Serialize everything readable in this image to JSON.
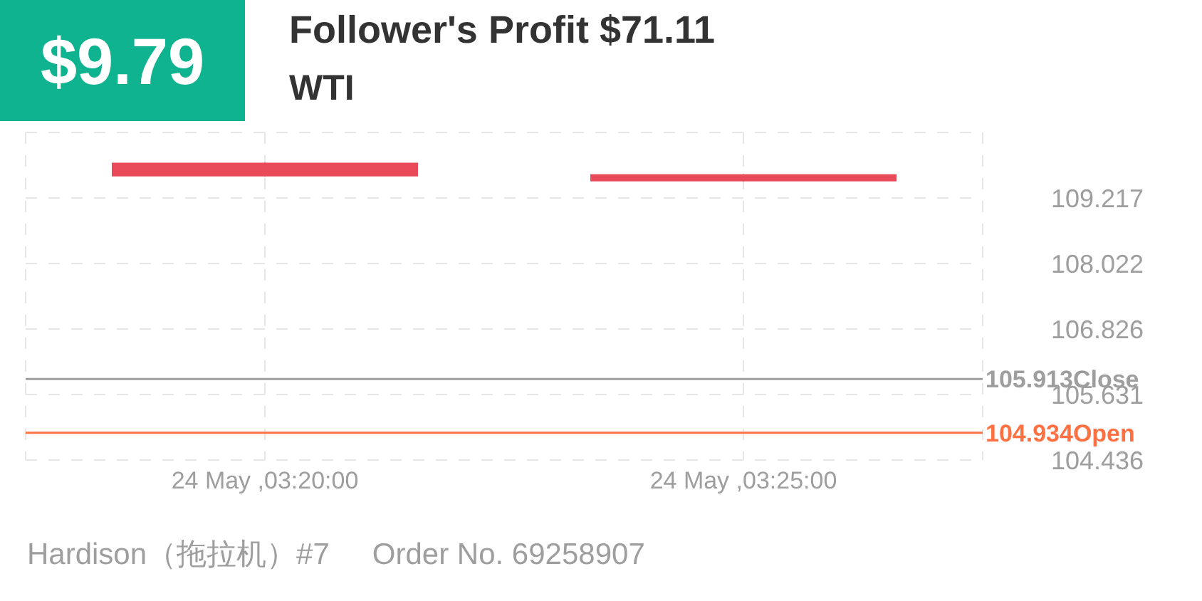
{
  "chart_data": {
    "type": "candlestick",
    "title": "Follower's Profit $71.11",
    "subtitle": "WTI",
    "annotations": [
      "$9.79",
      "Hardison（拖拉机）#7",
      "Order No. 69258907"
    ],
    "categories": [
      "24 May ,03:20:00",
      "24 May ,03:25:00"
    ],
    "ohlc": [
      [
        109.86,
        109.86,
        109.61,
        109.61
      ],
      [
        109.65,
        109.65,
        109.52,
        109.52
      ]
    ],
    "color": "#e84a5a",
    "ylim": [
      104.436,
      110.412
    ],
    "yticks": [
      104.436,
      105.631,
      106.826,
      108.022,
      109.217,
      {
        "value": 110.412,
        "label": null
      }
    ],
    "ref_lines": [
      {
        "axis": "y",
        "value": 105.913,
        "label": "105.913Close",
        "color": "#9e9e9e"
      },
      {
        "axis": "y",
        "value": 104.934,
        "label": "104.934Open",
        "color": "#ff7043"
      }
    ],
    "grid": true
  }
}
